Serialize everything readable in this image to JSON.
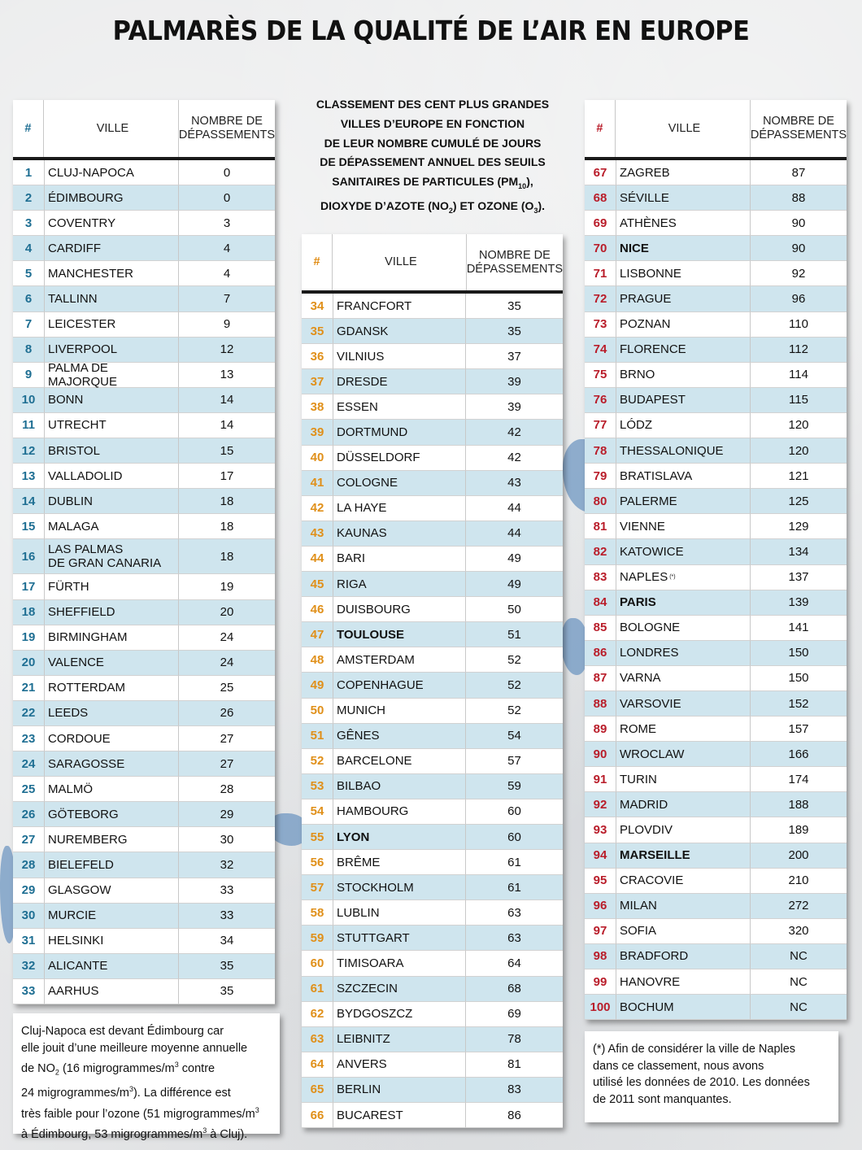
{
  "title": "PALMARÈS DE LA QUALITÉ DE L’AIR EN EUROPE",
  "intro": {
    "line1": "CLASSEMENT DES CENT PLUS GRANDES",
    "line2": "VILLES D’EUROPE EN FONCTION",
    "line3": "DE LEUR NOMBRE CUMULÉ DE JOURS",
    "line4": "DE DÉPASSEMENT ANNUEL DES SEUILS",
    "line5a": "SANITAIRES DE PARTICULES (PM",
    "line5sub": "10",
    "line5b": "),",
    "line6a": "DIOXYDE D’AZOTE (NO",
    "line6sub": "2",
    "line6b": ") ET OZONE (O",
    "line6sub2": "3",
    "line6c": ")."
  },
  "table_header": {
    "num": "#",
    "city": "VILLE",
    "count_line1": "NOMBRE DE",
    "count_line2": "DÉPASSEMENTS"
  },
  "columns": [
    [
      {
        "rank": "1",
        "city": "CLUJ-NAPOCA",
        "value": "0"
      },
      {
        "rank": "2",
        "city": "ÉDIMBOURG",
        "value": "0"
      },
      {
        "rank": "3",
        "city": "COVENTRY",
        "value": "3"
      },
      {
        "rank": "4",
        "city": "CARDIFF",
        "value": "4"
      },
      {
        "rank": "5",
        "city": "MANCHESTER",
        "value": "4"
      },
      {
        "rank": "6",
        "city": "TALLINN",
        "value": "7"
      },
      {
        "rank": "7",
        "city": "LEICESTER",
        "value": "9"
      },
      {
        "rank": "8",
        "city": "LIVERPOOL",
        "value": "12"
      },
      {
        "rank": "9",
        "city": "PALMA DE MAJORQUE",
        "value": "13"
      },
      {
        "rank": "10",
        "city": "BONN",
        "value": "14"
      },
      {
        "rank": "11",
        "city": "UTRECHT",
        "value": "14"
      },
      {
        "rank": "12",
        "city": "BRISTOL",
        "value": "15"
      },
      {
        "rank": "13",
        "city": "VALLADOLID",
        "value": "17"
      },
      {
        "rank": "14",
        "city": "DUBLIN",
        "value": "18"
      },
      {
        "rank": "15",
        "city": "MALAGA",
        "value": "18"
      },
      {
        "rank": "16",
        "city": "LAS PALMAS",
        "city2": "DE GRAN CANARIA",
        "value": "18"
      },
      {
        "rank": "17",
        "city": "FÜRTH",
        "value": "19"
      },
      {
        "rank": "18",
        "city": "SHEFFIELD",
        "value": "20"
      },
      {
        "rank": "19",
        "city": "BIRMINGHAM",
        "value": "24"
      },
      {
        "rank": "20",
        "city": "VALENCE",
        "value": "24"
      },
      {
        "rank": "21",
        "city": "ROTTERDAM",
        "value": "25"
      },
      {
        "rank": "22",
        "city": "LEEDS",
        "value": "26"
      },
      {
        "rank": "23",
        "city": "CORDOUE",
        "value": "27"
      },
      {
        "rank": "24",
        "city": "SARAGOSSE",
        "value": "27"
      },
      {
        "rank": "25",
        "city": "MALMÖ",
        "value": "28"
      },
      {
        "rank": "26",
        "city": "GÖTEBORG",
        "value": "29"
      },
      {
        "rank": "27",
        "city": "NUREMBERG",
        "value": "30"
      },
      {
        "rank": "28",
        "city": "BIELEFELD",
        "value": "32"
      },
      {
        "rank": "29",
        "city": "GLASGOW",
        "value": "33"
      },
      {
        "rank": "30",
        "city": "MURCIE",
        "value": "33"
      },
      {
        "rank": "31",
        "city": "HELSINKI",
        "value": "34"
      },
      {
        "rank": "32",
        "city": "ALICANTE",
        "value": "35"
      },
      {
        "rank": "33",
        "city": "AARHUS",
        "value": "35"
      }
    ],
    [
      {
        "rank": "34",
        "city": "FRANCFORT",
        "value": "35"
      },
      {
        "rank": "35",
        "city": "GDANSK",
        "value": "35"
      },
      {
        "rank": "36",
        "city": "VILNIUS",
        "value": "37"
      },
      {
        "rank": "37",
        "city": "DRESDE",
        "value": "39"
      },
      {
        "rank": "38",
        "city": "ESSEN",
        "value": "39"
      },
      {
        "rank": "39",
        "city": "DORTMUND",
        "value": "42"
      },
      {
        "rank": "40",
        "city": "DÜSSELDORF",
        "value": "42"
      },
      {
        "rank": "41",
        "city": "COLOGNE",
        "value": "43"
      },
      {
        "rank": "42",
        "city": "LA HAYE",
        "value": "44"
      },
      {
        "rank": "43",
        "city": "KAUNAS",
        "value": "44"
      },
      {
        "rank": "44",
        "city": "BARI",
        "value": "49"
      },
      {
        "rank": "45",
        "city": "RIGA",
        "value": "49"
      },
      {
        "rank": "46",
        "city": "DUISBOURG",
        "value": "50"
      },
      {
        "rank": "47",
        "city": "TOULOUSE",
        "value": "51",
        "bold": true
      },
      {
        "rank": "48",
        "city": "AMSTERDAM",
        "value": "52"
      },
      {
        "rank": "49",
        "city": "COPENHAGUE",
        "value": "52"
      },
      {
        "rank": "50",
        "city": "MUNICH",
        "value": "52"
      },
      {
        "rank": "51",
        "city": "GÊNES",
        "value": "54"
      },
      {
        "rank": "52",
        "city": "BARCELONE",
        "value": "57"
      },
      {
        "rank": "53",
        "city": "BILBAO",
        "value": "59"
      },
      {
        "rank": "54",
        "city": "HAMBOURG",
        "value": "60"
      },
      {
        "rank": "55",
        "city": "LYON",
        "value": "60",
        "bold": true
      },
      {
        "rank": "56",
        "city": "BRÊME",
        "value": "61"
      },
      {
        "rank": "57",
        "city": "STOCKHOLM",
        "value": "61"
      },
      {
        "rank": "58",
        "city": "LUBLIN",
        "value": "63"
      },
      {
        "rank": "59",
        "city": "STUTTGART",
        "value": "63"
      },
      {
        "rank": "60",
        "city": "TIMISOARA",
        "value": "64"
      },
      {
        "rank": "61",
        "city": "SZCZECIN",
        "value": "68"
      },
      {
        "rank": "62",
        "city": "BYDGOSZCZ",
        "value": "69"
      },
      {
        "rank": "63",
        "city": "LEIBNITZ",
        "value": "78"
      },
      {
        "rank": "64",
        "city": "ANVERS",
        "value": "81"
      },
      {
        "rank": "65",
        "city": "BERLIN",
        "value": "83"
      },
      {
        "rank": "66",
        "city": "BUCAREST",
        "value": "86"
      }
    ],
    [
      {
        "rank": "67",
        "city": "ZAGREB",
        "value": "87"
      },
      {
        "rank": "68",
        "city": "SÉVILLE",
        "value": "88"
      },
      {
        "rank": "69",
        "city": "ATHÈNES",
        "value": "90"
      },
      {
        "rank": "70",
        "city": "NICE",
        "value": "90",
        "bold": true
      },
      {
        "rank": "71",
        "city": "LISBONNE",
        "value": "92"
      },
      {
        "rank": "72",
        "city": "PRAGUE",
        "value": "96"
      },
      {
        "rank": "73",
        "city": "POZNAN",
        "value": "110"
      },
      {
        "rank": "74",
        "city": "FLORENCE",
        "value": "112"
      },
      {
        "rank": "75",
        "city": "BRNO",
        "value": "114"
      },
      {
        "rank": "76",
        "city": "BUDAPEST",
        "value": "115"
      },
      {
        "rank": "77",
        "city": "LÓDZ",
        "value": "120"
      },
      {
        "rank": "78",
        "city": "THESSALONIQUE",
        "value": "120"
      },
      {
        "rank": "79",
        "city": "BRATISLAVA",
        "value": "121"
      },
      {
        "rank": "80",
        "city": "PALERME",
        "value": "125"
      },
      {
        "rank": "81",
        "city": "VIENNE",
        "value": "129"
      },
      {
        "rank": "82",
        "city": "KATOWICE",
        "value": "134"
      },
      {
        "rank": "83",
        "city": "NAPLES",
        "mark": "(*)",
        "value": "137"
      },
      {
        "rank": "84",
        "city": "PARIS",
        "value": "139",
        "bold": true
      },
      {
        "rank": "85",
        "city": "BOLOGNE",
        "value": "141"
      },
      {
        "rank": "86",
        "city": "LONDRES",
        "value": "150"
      },
      {
        "rank": "87",
        "city": "VARNA",
        "value": "150"
      },
      {
        "rank": "88",
        "city": "VARSOVIE",
        "value": "152"
      },
      {
        "rank": "89",
        "city": "ROME",
        "value": "157"
      },
      {
        "rank": "90",
        "city": "WROCLAW",
        "value": "166"
      },
      {
        "rank": "91",
        "city": "TURIN",
        "value": "174"
      },
      {
        "rank": "92",
        "city": "MADRID",
        "value": "188"
      },
      {
        "rank": "93",
        "city": "PLOVDIV",
        "value": "189"
      },
      {
        "rank": "94",
        "city": "MARSEILLE",
        "value": "200",
        "bold": true
      },
      {
        "rank": "95",
        "city": "CRACOVIE",
        "value": "210"
      },
      {
        "rank": "96",
        "city": "MILAN",
        "value": "272"
      },
      {
        "rank": "97",
        "city": "SOFIA",
        "value": "320"
      },
      {
        "rank": "98",
        "city": "BRADFORD",
        "value": "NC"
      },
      {
        "rank": "99",
        "city": "HANOVRE",
        "value": "NC"
      },
      {
        "rank": "100",
        "city": "BOCHUM",
        "value": "NC"
      }
    ]
  ],
  "note_left": {
    "l1": "Cluj-Napoca est devant Édimbourg car",
    "l2": "elle jouit d’une meilleure moyenne annuelle",
    "l3a": "de NO",
    "l3sub": "2",
    "l3b": " (16 migrogrammes/m",
    "l3sup": "3",
    "l3c": " contre",
    "l4a": "24 migrogrammes/m",
    "l4sup": "3",
    "l4b": "). La différence est",
    "l5": "très faible pour l’ozone (51 migrogrammes/m",
    "l5sup": "3",
    "l6a": "à Édimbourg, 53 migrogrammes/m",
    "l6sup": "3",
    "l6b": " à Cluj)."
  },
  "note_right": {
    "l1": "(*) Afin de considérer la ville de Naples",
    "l2": "dans ce classement, nous avons",
    "l3": "utilisé les données de 2010. Les données",
    "l4": "de 2011 sont manquantes."
  },
  "colors": {
    "rank_col1": "#1f6f93",
    "rank_col2": "#e0901a",
    "rank_col3": "#b91d2a",
    "row_stripe": "#cfe5ee",
    "map_water": "#6f97c2"
  }
}
